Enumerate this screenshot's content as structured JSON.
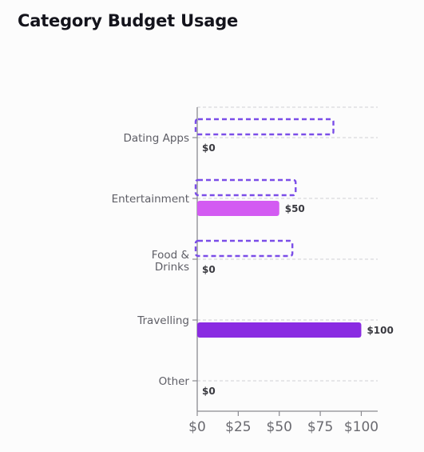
{
  "title": "Category Budget Usage",
  "chart_data": {
    "type": "bar",
    "orientation": "horizontal",
    "title": "Category Budget Usage",
    "xlabel": "",
    "ylabel": "",
    "xlim": [
      0,
      110
    ],
    "x_ticks": [
      0,
      25,
      50,
      75,
      100
    ],
    "x_tick_labels": [
      "$0",
      "$25",
      "$50",
      "$75",
      "$100"
    ],
    "grid": "horizontal dashed",
    "legend": "none",
    "categories": [
      {
        "lines": [
          "Dating Apps"
        ]
      },
      {
        "lines": [
          "Entertainment"
        ]
      },
      {
        "lines": [
          "Food &",
          "Drinks"
        ]
      },
      {
        "lines": [
          "Travelling"
        ]
      },
      {
        "lines": [
          "Other"
        ]
      }
    ],
    "series": [
      {
        "style": "dashed-outline",
        "color": "#7b4ee8",
        "values": [
          83,
          60,
          58,
          null,
          null
        ]
      },
      {
        "style": "solid",
        "values": [
          0,
          50,
          0,
          100,
          0
        ],
        "colors": [
          "#d35bf2",
          "#d35bf2",
          "#d35bf2",
          "#8a2be2",
          "#d35bf2"
        ]
      }
    ],
    "value_labels": [
      "$0",
      "$50",
      "$0",
      "$100",
      "$0"
    ]
  }
}
